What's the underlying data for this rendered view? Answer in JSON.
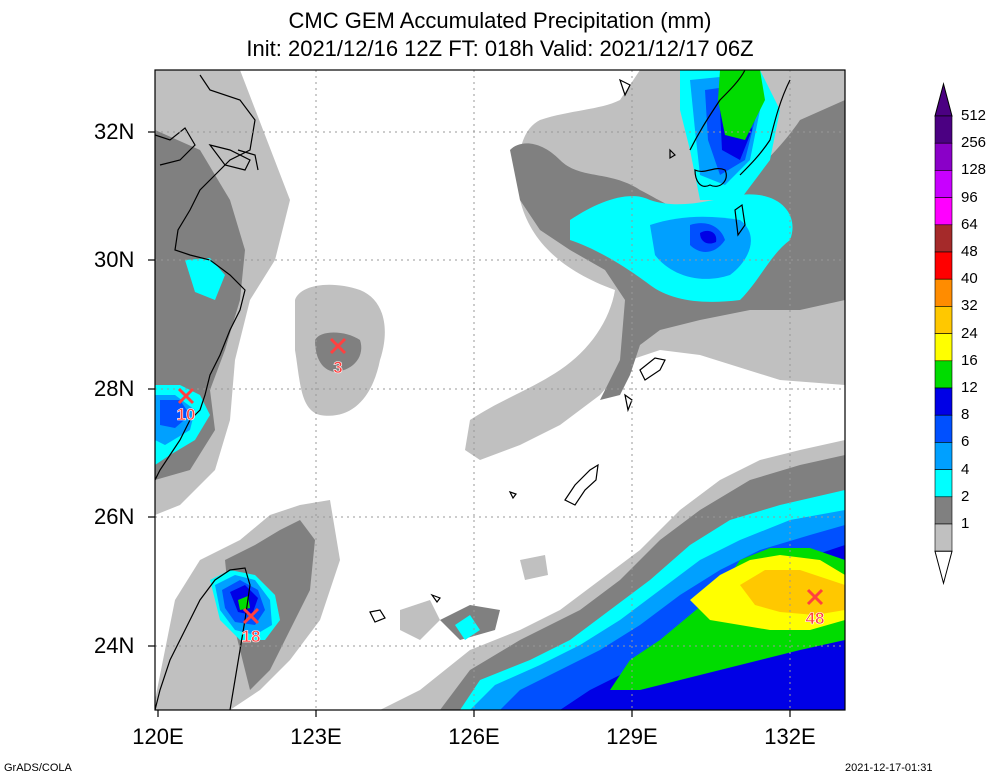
{
  "title_line1": "CMC GEM Accumulated Precipitation (mm)",
  "title_line2": "Init: 2021/12/16 12Z  FT: 018h  Valid: 2021/12/17 06Z",
  "lat_labels": [
    "32N",
    "30N",
    "28N",
    "26N",
    "24N"
  ],
  "lon_labels": [
    "120E",
    "123E",
    "126E",
    "129E",
    "132E"
  ],
  "colorbar": {
    "levels": [
      "512",
      "256",
      "128",
      "96",
      "64",
      "48",
      "40",
      "32",
      "24",
      "16",
      "12",
      "8",
      "6",
      "4",
      "2",
      "1"
    ],
    "colors": [
      "#4b0082",
      "#8a00c8",
      "#c800ff",
      "#ff00ff",
      "#a52a2a",
      "#ff0000",
      "#ff8c00",
      "#ffc800",
      "#ffff00",
      "#00dc00",
      "#0000e6",
      "#0050ff",
      "#00a0ff",
      "#00ffff",
      "#808080",
      "#c0c0c0"
    ]
  },
  "markers": [
    {
      "value": "10"
    },
    {
      "value": "3"
    },
    {
      "value": "18"
    },
    {
      "value": "48"
    }
  ],
  "footer": {
    "left": "GrADS/COLA",
    "right": "2021-12-17-01:31"
  }
}
